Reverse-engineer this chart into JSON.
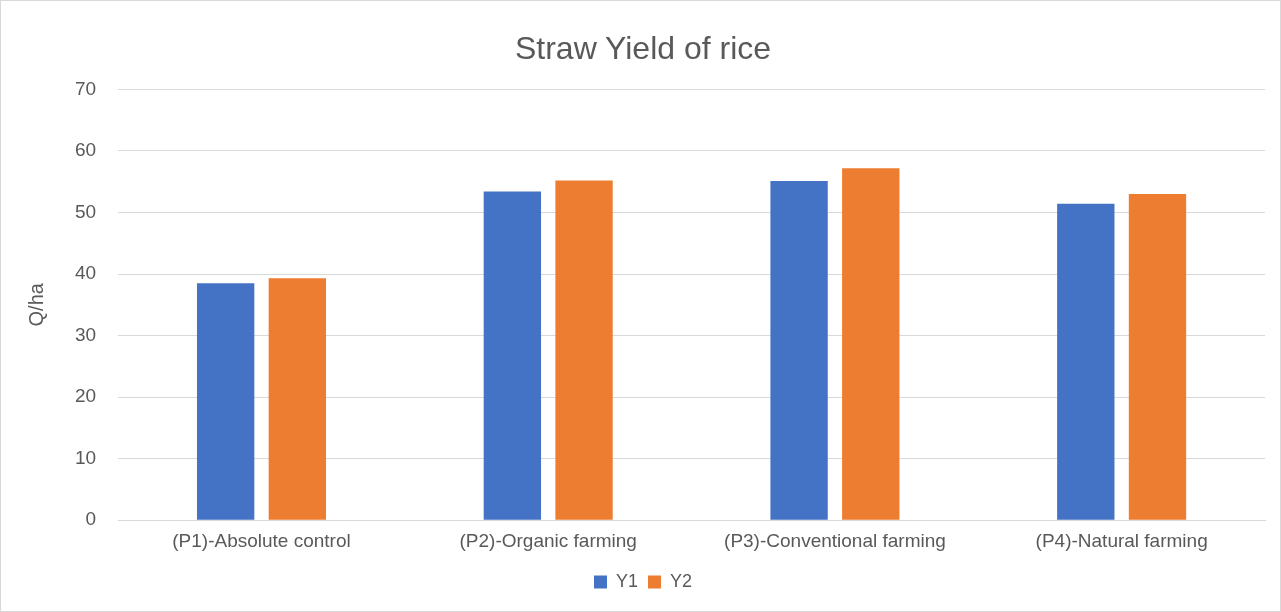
{
  "chart_data": {
    "type": "bar",
    "title": "Straw Yield of rice",
    "ylabel": "Q/ha",
    "categories": [
      "(P1)-Absolute control",
      "(P2)-Organic farming",
      "(P3)-Conventional farming",
      "(P4)-Natural farming"
    ],
    "series": [
      {
        "name": "Y1",
        "color": "#4472c4",
        "values": [
          38.5,
          53.4,
          55.1,
          51.4
        ]
      },
      {
        "name": "Y2",
        "color": "#ed7d31",
        "values": [
          39.3,
          55.2,
          57.2,
          53.0
        ]
      }
    ],
    "ylim": [
      0,
      70
    ],
    "yticks": [
      0,
      10,
      20,
      30,
      40,
      50,
      60,
      70
    ],
    "grid": "y",
    "legend": "bottom"
  }
}
